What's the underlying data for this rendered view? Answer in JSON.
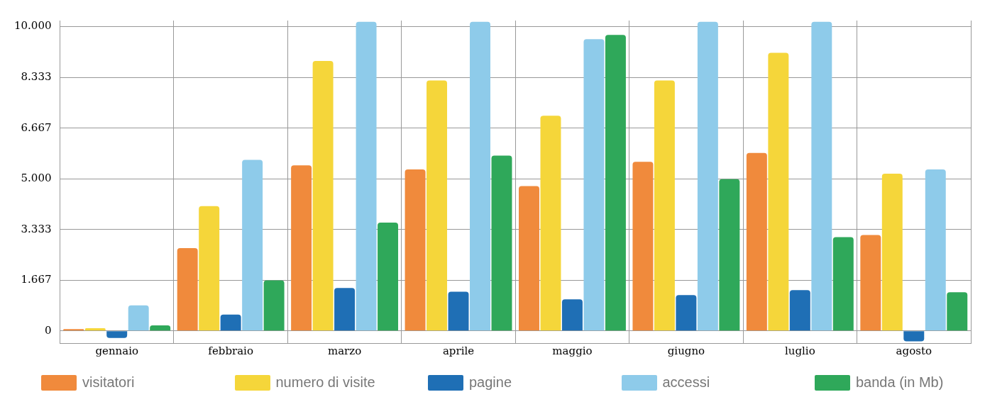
{
  "chart_data": {
    "type": "bar",
    "categories": [
      "gennaio",
      "febbraio",
      "marzo",
      "aprile",
      "maggio",
      "giugno",
      "luglio",
      "agosto"
    ],
    "series": [
      {
        "name": "visitatori",
        "color": "#f08a3c",
        "values": [
          60,
          2720,
          5440,
          5310,
          4760,
          5560,
          5850,
          3150
        ]
      },
      {
        "name": "numero di visite",
        "color": "#f5d63a",
        "values": [
          90,
          4100,
          8870,
          8230,
          7070,
          8230,
          9140,
          5170
        ]
      },
      {
        "name": "pagine",
        "color": "#1f6fb5",
        "values": [
          -230,
          540,
          1410,
          1290,
          1040,
          1180,
          1340,
          -340
        ]
      },
      {
        "name": "accessi",
        "color": "#8ecbea",
        "values": [
          840,
          5620,
          10160,
          10160,
          9590,
          10160,
          10160,
          5310
        ]
      },
      {
        "name": "banda (in Mb)",
        "color": "#2fa85a",
        "values": [
          180,
          1660,
          3560,
          5760,
          9730,
          4990,
          3080,
          1270
        ]
      }
    ],
    "ylim": [
      -400,
      10200
    ],
    "yticks": [
      {
        "value": 0,
        "label": "0"
      },
      {
        "value": 1667,
        "label": "1.667"
      },
      {
        "value": 3333,
        "label": "3.333"
      },
      {
        "value": 5000,
        "label": "5.000"
      },
      {
        "value": 6667,
        "label": "6.667"
      },
      {
        "value": 8333,
        "label": "8.333"
      },
      {
        "value": 10000,
        "label": "10.000"
      }
    ],
    "grid": true,
    "legend": "bottom"
  }
}
